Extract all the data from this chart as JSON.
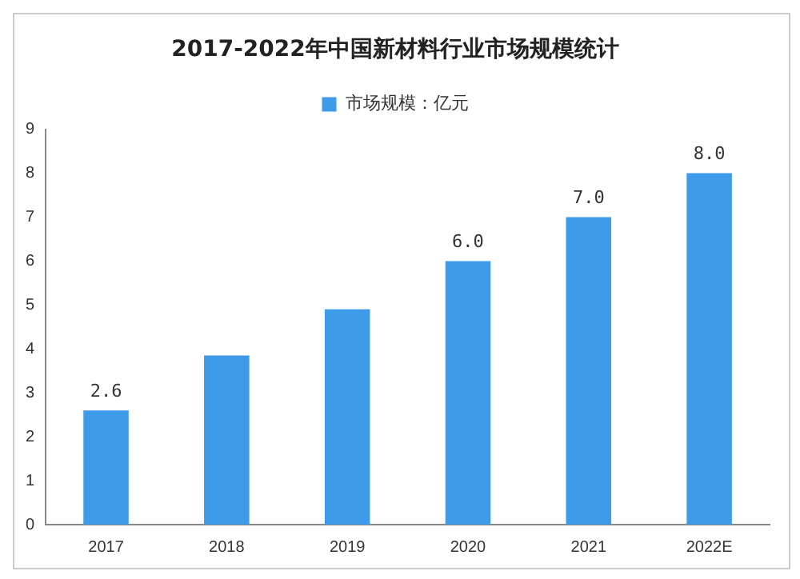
{
  "chart_data": {
    "type": "bar",
    "title": "2017-2022年中国新材料行业市场规模统计",
    "categories": [
      "2017",
      "2018",
      "2019",
      "2020",
      "2021",
      "2022E"
    ],
    "series": [
      {
        "name": "市场规模：亿元",
        "color": "#3d9be9",
        "values": [
          2.6,
          3.85,
          4.9,
          6.0,
          7.0,
          8.0
        ],
        "value_labels": [
          "2.6",
          null,
          null,
          "6.0",
          "7.0",
          "8.0"
        ]
      }
    ],
    "ylim": [
      0,
      9
    ],
    "yticks": [
      0,
      1,
      2,
      3,
      4,
      5,
      6,
      7,
      8,
      9
    ],
    "grid": false,
    "legend": "top"
  }
}
